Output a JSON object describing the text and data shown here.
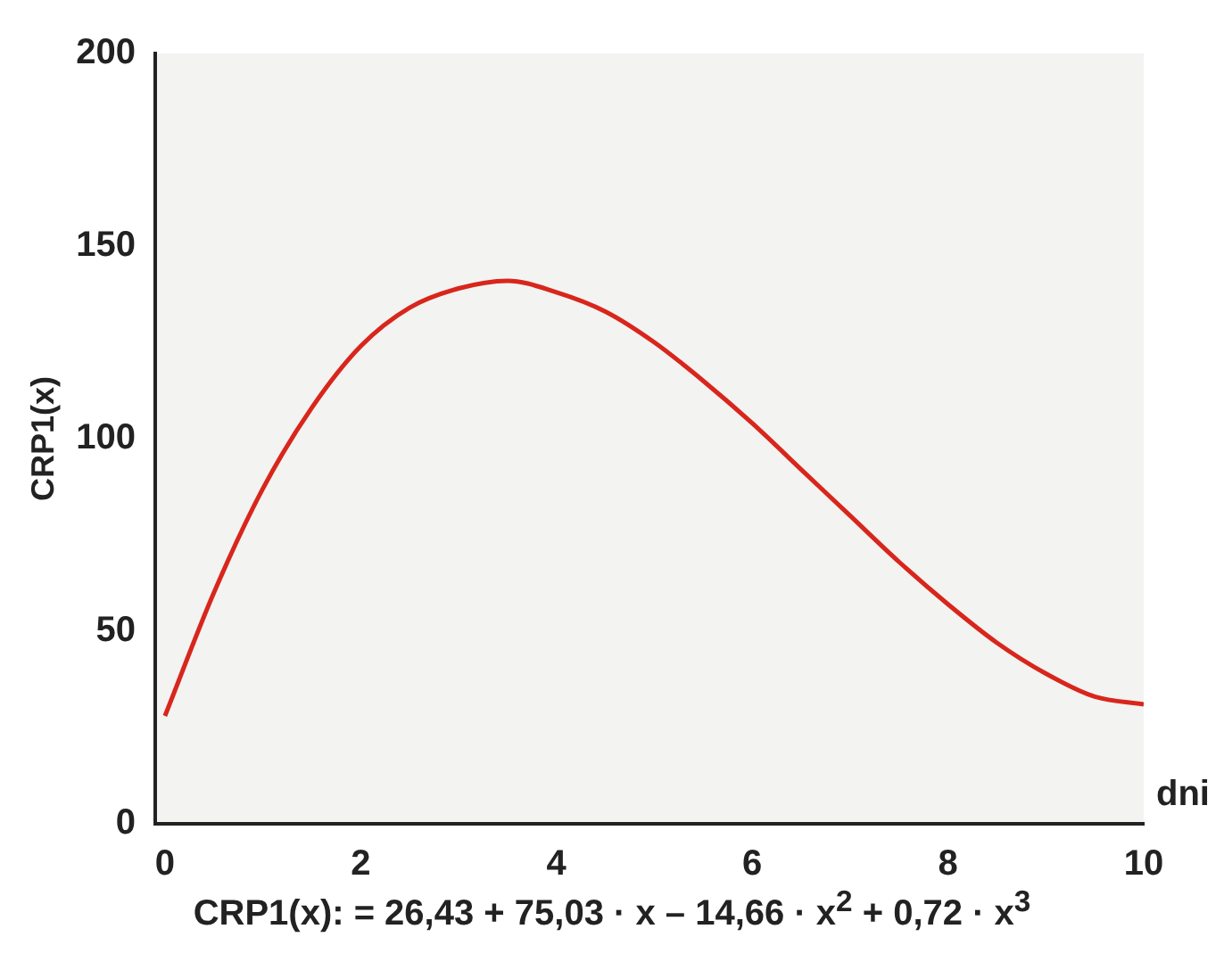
{
  "chart_data": {
    "type": "line",
    "xlabel": "dni",
    "ylabel": "CRP1(x)",
    "annotations": [
      "CRP1(x): = 26,43 + 75,03 · x – 14,66 · x$^{2}$ + 0,72 · x$^{3}$"
    ],
    "x": [
      0,
      0.5,
      1,
      1.5,
      2,
      2.5,
      3,
      3.5,
      4,
      4.5,
      5,
      5.5,
      6,
      6.5,
      7,
      7.5,
      8,
      8.5,
      9,
      9.5,
      10
    ],
    "series": [
      {
        "color": "#d8261c",
        "values": [
          28,
          60,
          87,
          108,
          124,
          134,
          139,
          141,
          138,
          133,
          125,
          115,
          104,
          92,
          80,
          68,
          57,
          47,
          39,
          33,
          31
        ]
      }
    ],
    "xlim": [
      -0.1,
      10
    ],
    "ylim": [
      0,
      200
    ],
    "xticks": [
      0,
      2,
      4,
      6,
      8,
      10
    ],
    "yticks": [
      0,
      50,
      100,
      150,
      200
    ],
    "grid": false,
    "legend": false,
    "marker": "none",
    "line_style": "solid"
  }
}
